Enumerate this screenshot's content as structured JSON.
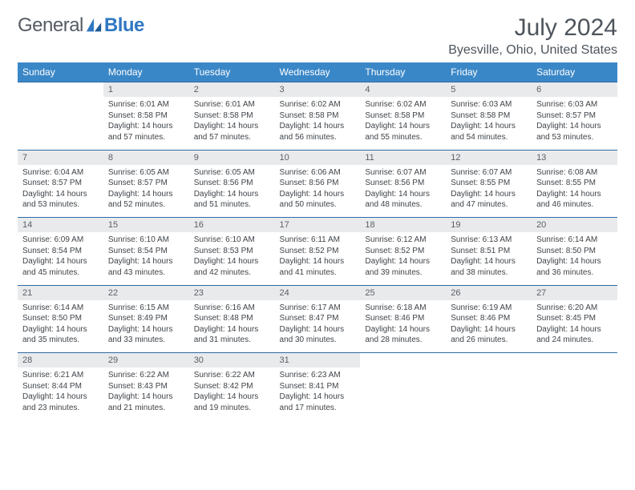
{
  "logo": {
    "text1": "General",
    "text2": "Blue",
    "color_primary": "#2f78c2",
    "color_text": "#555b63"
  },
  "month_title": "July 2024",
  "location": "Byesville, Ohio, United States",
  "header_bg": "#3a87c7",
  "header_fg": "#ffffff",
  "daynum_bg": "#e9eaec",
  "border_color": "#2e6ca6",
  "weekdays": [
    "Sunday",
    "Monday",
    "Tuesday",
    "Wednesday",
    "Thursday",
    "Friday",
    "Saturday"
  ],
  "weeks": [
    {
      "nums": [
        "",
        "1",
        "2",
        "3",
        "4",
        "5",
        "6"
      ],
      "cells": [
        null,
        {
          "sunrise": "6:01 AM",
          "sunset": "8:58 PM",
          "daylight": "14 hours and 57 minutes."
        },
        {
          "sunrise": "6:01 AM",
          "sunset": "8:58 PM",
          "daylight": "14 hours and 57 minutes."
        },
        {
          "sunrise": "6:02 AM",
          "sunset": "8:58 PM",
          "daylight": "14 hours and 56 minutes."
        },
        {
          "sunrise": "6:02 AM",
          "sunset": "8:58 PM",
          "daylight": "14 hours and 55 minutes."
        },
        {
          "sunrise": "6:03 AM",
          "sunset": "8:58 PM",
          "daylight": "14 hours and 54 minutes."
        },
        {
          "sunrise": "6:03 AM",
          "sunset": "8:57 PM",
          "daylight": "14 hours and 53 minutes."
        }
      ]
    },
    {
      "nums": [
        "7",
        "8",
        "9",
        "10",
        "11",
        "12",
        "13"
      ],
      "cells": [
        {
          "sunrise": "6:04 AM",
          "sunset": "8:57 PM",
          "daylight": "14 hours and 53 minutes."
        },
        {
          "sunrise": "6:05 AM",
          "sunset": "8:57 PM",
          "daylight": "14 hours and 52 minutes."
        },
        {
          "sunrise": "6:05 AM",
          "sunset": "8:56 PM",
          "daylight": "14 hours and 51 minutes."
        },
        {
          "sunrise": "6:06 AM",
          "sunset": "8:56 PM",
          "daylight": "14 hours and 50 minutes."
        },
        {
          "sunrise": "6:07 AM",
          "sunset": "8:56 PM",
          "daylight": "14 hours and 48 minutes."
        },
        {
          "sunrise": "6:07 AM",
          "sunset": "8:55 PM",
          "daylight": "14 hours and 47 minutes."
        },
        {
          "sunrise": "6:08 AM",
          "sunset": "8:55 PM",
          "daylight": "14 hours and 46 minutes."
        }
      ]
    },
    {
      "nums": [
        "14",
        "15",
        "16",
        "17",
        "18",
        "19",
        "20"
      ],
      "cells": [
        {
          "sunrise": "6:09 AM",
          "sunset": "8:54 PM",
          "daylight": "14 hours and 45 minutes."
        },
        {
          "sunrise": "6:10 AM",
          "sunset": "8:54 PM",
          "daylight": "14 hours and 43 minutes."
        },
        {
          "sunrise": "6:10 AM",
          "sunset": "8:53 PM",
          "daylight": "14 hours and 42 minutes."
        },
        {
          "sunrise": "6:11 AM",
          "sunset": "8:52 PM",
          "daylight": "14 hours and 41 minutes."
        },
        {
          "sunrise": "6:12 AM",
          "sunset": "8:52 PM",
          "daylight": "14 hours and 39 minutes."
        },
        {
          "sunrise": "6:13 AM",
          "sunset": "8:51 PM",
          "daylight": "14 hours and 38 minutes."
        },
        {
          "sunrise": "6:14 AM",
          "sunset": "8:50 PM",
          "daylight": "14 hours and 36 minutes."
        }
      ]
    },
    {
      "nums": [
        "21",
        "22",
        "23",
        "24",
        "25",
        "26",
        "27"
      ],
      "cells": [
        {
          "sunrise": "6:14 AM",
          "sunset": "8:50 PM",
          "daylight": "14 hours and 35 minutes."
        },
        {
          "sunrise": "6:15 AM",
          "sunset": "8:49 PM",
          "daylight": "14 hours and 33 minutes."
        },
        {
          "sunrise": "6:16 AM",
          "sunset": "8:48 PM",
          "daylight": "14 hours and 31 minutes."
        },
        {
          "sunrise": "6:17 AM",
          "sunset": "8:47 PM",
          "daylight": "14 hours and 30 minutes."
        },
        {
          "sunrise": "6:18 AM",
          "sunset": "8:46 PM",
          "daylight": "14 hours and 28 minutes."
        },
        {
          "sunrise": "6:19 AM",
          "sunset": "8:46 PM",
          "daylight": "14 hours and 26 minutes."
        },
        {
          "sunrise": "6:20 AM",
          "sunset": "8:45 PM",
          "daylight": "14 hours and 24 minutes."
        }
      ]
    },
    {
      "nums": [
        "28",
        "29",
        "30",
        "31",
        "",
        "",
        ""
      ],
      "cells": [
        {
          "sunrise": "6:21 AM",
          "sunset": "8:44 PM",
          "daylight": "14 hours and 23 minutes."
        },
        {
          "sunrise": "6:22 AM",
          "sunset": "8:43 PM",
          "daylight": "14 hours and 21 minutes."
        },
        {
          "sunrise": "6:22 AM",
          "sunset": "8:42 PM",
          "daylight": "14 hours and 19 minutes."
        },
        {
          "sunrise": "6:23 AM",
          "sunset": "8:41 PM",
          "daylight": "14 hours and 17 minutes."
        },
        null,
        null,
        null
      ]
    }
  ],
  "labels": {
    "sunrise": "Sunrise:",
    "sunset": "Sunset:",
    "daylight": "Daylight:"
  }
}
